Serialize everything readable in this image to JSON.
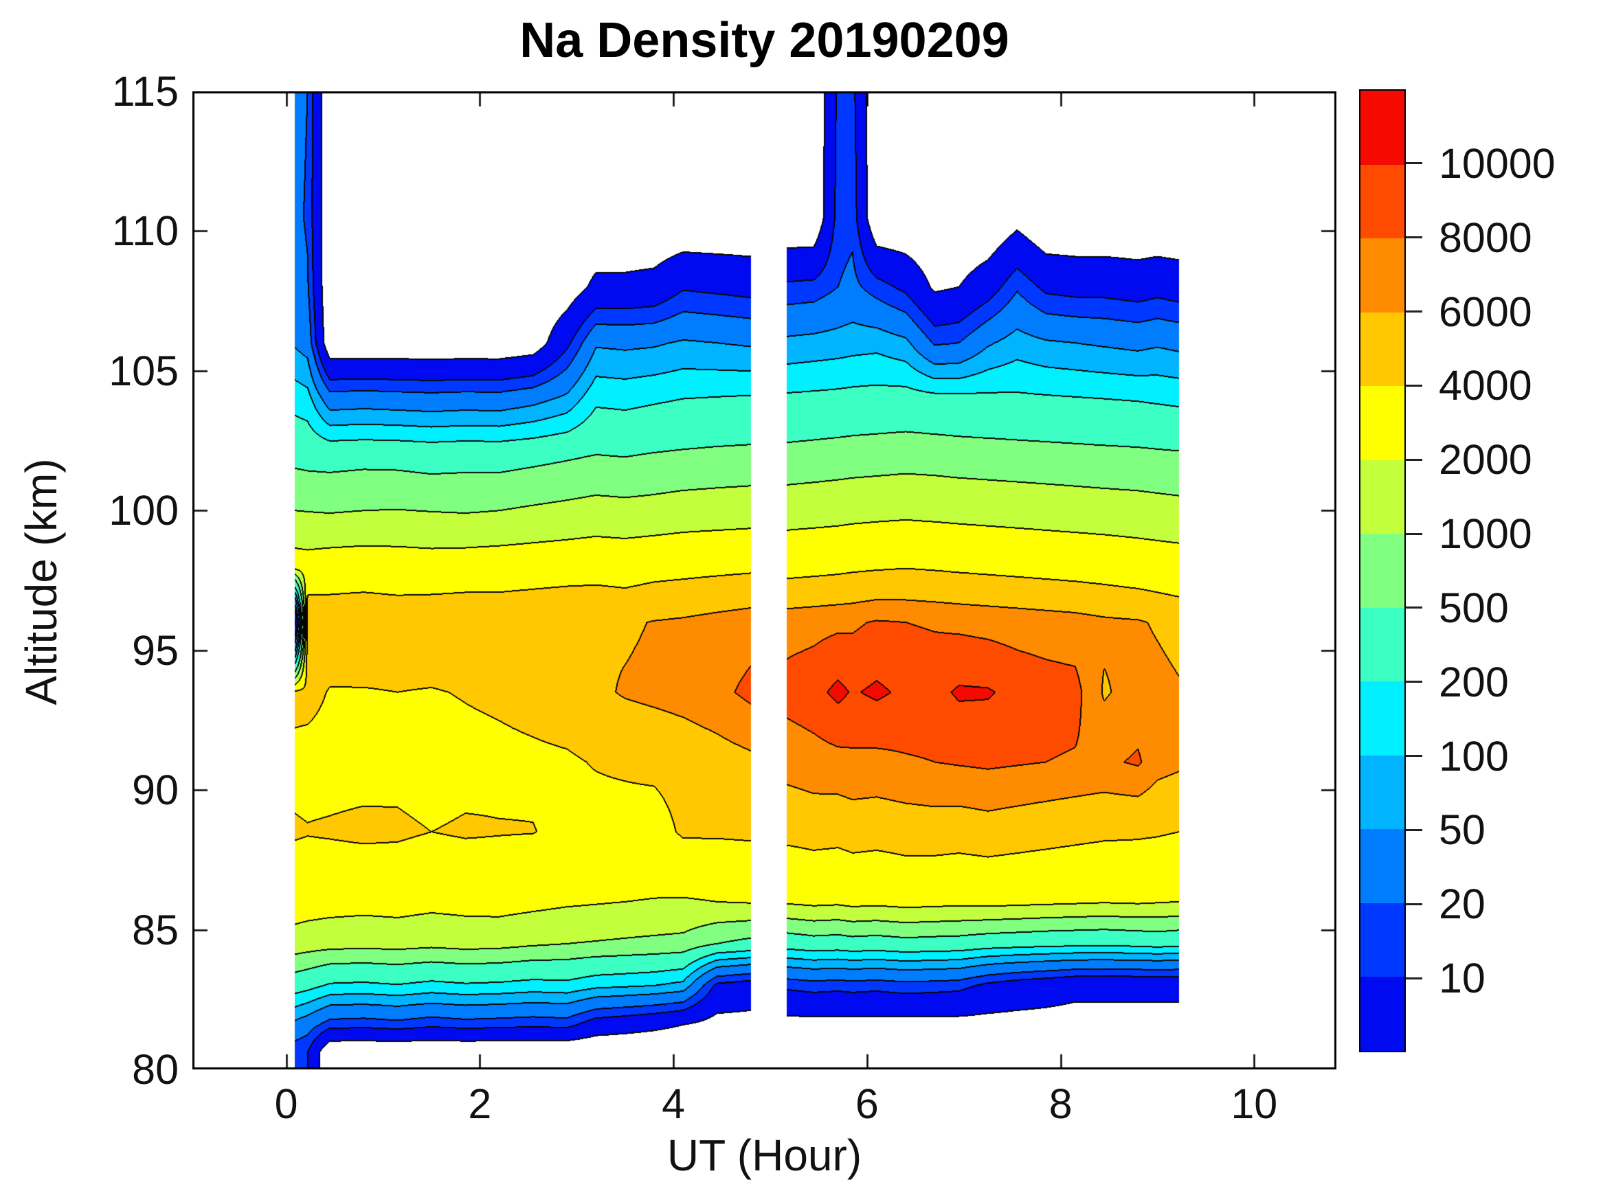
{
  "title": "Na Density 20190209",
  "x_axis": {
    "label": "UT (Hour)",
    "ticks": [
      0,
      2,
      4,
      6,
      8,
      10
    ],
    "range": [
      -0.97,
      10.85
    ]
  },
  "y_axis": {
    "label": "Altitude (km)",
    "ticks": [
      115,
      110,
      105,
      100,
      95,
      90,
      85,
      80
    ],
    "range": [
      80,
      115
    ]
  },
  "colorbar": {
    "levels": [
      10,
      20,
      50,
      100,
      200,
      500,
      1000,
      2000,
      4000,
      6000,
      8000,
      10000
    ],
    "labels_top_to_bottom": [
      "10000",
      "8000",
      "6000",
      "4000",
      "2000",
      "1000",
      "500",
      "200",
      "100",
      "50",
      "20",
      "10"
    ],
    "colors_bottom_to_top": [
      "#000AF0",
      "#0038FF",
      "#007DFF",
      "#00B4FF",
      "#00F0FF",
      "#3CFFC3",
      "#80FF80",
      "#C3FF3C",
      "#FFFF00",
      "#FFC800",
      "#FF8C00",
      "#FF4B00",
      "#F40A00"
    ]
  },
  "chart_data": {
    "type": "filled_contour",
    "title": "Na Density 20190209",
    "xlabel": "UT (Hour)",
    "ylabel": "Altitude (km)",
    "grid": false,
    "legend_position": "right-colorbar",
    "contour_levels": [
      10,
      20,
      50,
      100,
      200,
      500,
      1000,
      2000,
      4000,
      6000,
      8000,
      10000
    ],
    "below_lowest_level_value": 3,
    "altitudes_km": [
      80.6,
      81.6,
      83,
      84.5,
      86,
      88.5,
      91,
      93.5,
      96,
      98,
      100,
      102,
      104,
      106,
      108,
      110.5,
      115
    ],
    "segments": [
      {
        "name": "pre-gap",
        "times_ut_hour": [
          0.09,
          0.22,
          0.45,
          0.8,
          1.15,
          1.5,
          1.85,
          2.2,
          2.55,
          2.9,
          3.2,
          3.5,
          3.8,
          4.1,
          4.45,
          4.8
        ],
        "density_columns": [
          [
            12,
            40,
            300,
            1500,
            2800,
            4200,
            3500,
            4600,
            2,
            2800,
            1000,
            400,
            150,
            45,
            30,
            25,
            28
          ],
          [
            10,
            30,
            260,
            1400,
            2700,
            4100,
            3400,
            4600,
            5800,
            2700,
            980,
            380,
            130,
            35,
            22,
            18,
            20
          ],
          [
            1,
            14,
            180,
            1300,
            2600,
            4200,
            3400,
            3900,
            5500,
            2900,
            950,
            370,
            30,
            1.2,
            1,
            1,
            1
          ],
          [
            1,
            13,
            170,
            1250,
            2500,
            4400,
            3400,
            3900,
            5600,
            3000,
            1000,
            390,
            32,
            1.2,
            1,
            1,
            1
          ],
          [
            1,
            15,
            190,
            1300,
            2600,
            4300,
            3500,
            4000,
            5400,
            2900,
            1020,
            380,
            30,
            1.2,
            1,
            1,
            1
          ],
          [
            1,
            12,
            160,
            1200,
            2400,
            4000,
            3300,
            3900,
            5700,
            2800,
            980,
            350,
            28,
            1.2,
            1,
            1,
            1
          ],
          [
            1,
            14,
            180,
            1300,
            2500,
            4200,
            3500,
            4100,
            5800,
            2900,
            950,
            370,
            30,
            1.2,
            1,
            1,
            1
          ],
          [
            1,
            13,
            170,
            1250,
            2600,
            4100,
            3600,
            4300,
            5600,
            3000,
            1000,
            360,
            29,
            1.2,
            1,
            1,
            1
          ],
          [
            1,
            12,
            150,
            1100,
            2400,
            4050,
            3700,
            4600,
            5800,
            3100,
            1100,
            400,
            38,
            1.5,
            1,
            1,
            1
          ],
          [
            1,
            13,
            160,
            1000,
            2200,
            3600,
            3800,
            5000,
            6000,
            3200,
            1200,
            450,
            60,
            8,
            1.5,
            1,
            1
          ],
          [
            1,
            6,
            120,
            950,
            2100,
            3400,
            4100,
            5600,
            5900,
            3300,
            1300,
            500,
            170,
            45,
            4,
            1,
            1
          ],
          [
            1,
            5,
            110,
            900,
            2000,
            3300,
            4300,
            6200,
            5700,
            3200,
            1250,
            480,
            160,
            42,
            4,
            1,
            1
          ],
          [
            1,
            4,
            100,
            850,
            1950,
            3200,
            4500,
            6500,
            6100,
            3400,
            1300,
            520,
            180,
            45,
            4.5,
            1,
            1
          ],
          [
            1,
            3,
            80,
            800,
            1900,
            4300,
            4800,
            6800,
            6300,
            3500,
            1400,
            550,
            200,
            55,
            9,
            1,
            1
          ],
          [
            1,
            2,
            8,
            500,
            2000,
            4300,
            5200,
            7400,
            6700,
            3600,
            1450,
            580,
            210,
            50,
            8,
            1,
            1
          ],
          [
            1,
            2,
            6,
            400,
            2100,
            4400,
            5600,
            8600,
            7100,
            3700,
            1500,
            600,
            220,
            45,
            7,
            1,
            1
          ]
        ]
      },
      {
        "name": "post-gap",
        "times_ut_hour": [
          5.17,
          5.45,
          5.7,
          5.85,
          6.1,
          6.4,
          6.7,
          6.95,
          7.25,
          7.55,
          7.85,
          8.15,
          8.45,
          8.8,
          9.0,
          9.22
        ],
        "density_columns": [
          [
            1,
            2,
            12,
            300,
            2200,
            4600,
            6800,
            8800,
            7200,
            3400,
            1500,
            620,
            230,
            60,
            12,
            1,
            1
          ],
          [
            1,
            2,
            14,
            350,
            2400,
            4800,
            7200,
            9300,
            7400,
            3500,
            1550,
            650,
            240,
            65,
            13,
            1,
            1
          ],
          [
            1,
            2,
            13,
            330,
            2300,
            4700,
            7400,
            10600,
            7600,
            3600,
            1600,
            680,
            250,
            70,
            20,
            14,
            12
          ],
          [
            1,
            2,
            14,
            360,
            2500,
            4900,
            7600,
            9800,
            7700,
            3700,
            1650,
            700,
            260,
            75,
            25,
            16,
            13
          ],
          [
            1,
            2,
            13,
            340,
            2400,
            4800,
            7500,
            10400,
            8200,
            3800,
            1700,
            720,
            270,
            80,
            14,
            1,
            1
          ],
          [
            1,
            2,
            15,
            380,
            2600,
            5000,
            7800,
            9600,
            8000,
            3900,
            1750,
            750,
            280,
            60,
            8,
            1,
            1
          ],
          [
            1,
            2,
            14,
            360,
            2500,
            5100,
            8000,
            9400,
            7800,
            3800,
            1700,
            730,
            260,
            18,
            2.5,
            1,
            1
          ],
          [
            1,
            2,
            13,
            350,
            2400,
            5000,
            8200,
            10300,
            7600,
            3700,
            1650,
            700,
            250,
            20,
            3,
            1,
            1
          ],
          [
            1,
            2,
            8,
            300,
            2500,
            5200,
            8400,
            10200,
            7400,
            3600,
            1600,
            680,
            240,
            45,
            6,
            1,
            1
          ],
          [
            1,
            2,
            6,
            280,
            2400,
            5000,
            8200,
            9400,
            7200,
            3500,
            1550,
            660,
            230,
            70,
            18,
            2,
            1
          ],
          [
            1,
            2,
            5,
            260,
            2300,
            4800,
            8000,
            9000,
            7000,
            3400,
            1500,
            640,
            220,
            55,
            8,
            1,
            1
          ],
          [
            1,
            2,
            4,
            250,
            2200,
            4600,
            7800,
            8800,
            6800,
            3300,
            1450,
            620,
            210,
            50,
            7,
            1,
            1
          ],
          [
            1,
            2,
            4,
            240,
            2100,
            4400,
            7600,
            5800,
            6400,
            3200,
            1400,
            600,
            200,
            45,
            7,
            1,
            1
          ],
          [
            1,
            2,
            4,
            260,
            2200,
            4300,
            8300,
            6800,
            6200,
            3000,
            1350,
            580,
            190,
            40,
            6,
            1,
            1
          ],
          [
            1,
            2,
            4,
            280,
            2100,
            4200,
            6800,
            6600,
            5800,
            2900,
            1300,
            560,
            180,
            45,
            7,
            1,
            1
          ],
          [
            1,
            2,
            4,
            260,
            2000,
            4000,
            6400,
            6200,
            5400,
            2800,
            1250,
            540,
            170,
            40,
            6,
            1,
            1
          ]
        ]
      }
    ]
  }
}
